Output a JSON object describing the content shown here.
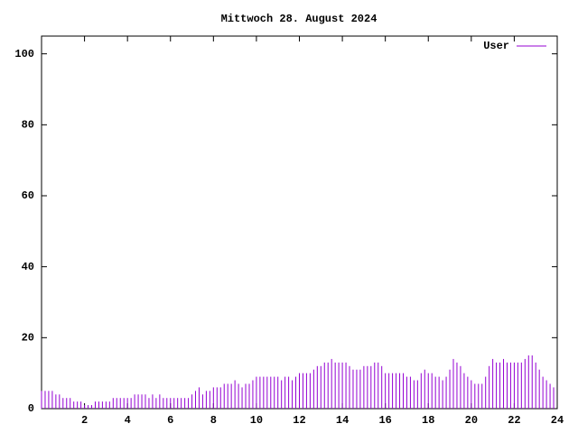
{
  "chart_data": {
    "type": "impulse",
    "title": "Mittwoch 28. August 2024",
    "x": [
      0,
      0.167,
      0.333,
      0.5,
      0.667,
      0.833,
      1,
      1.167,
      1.333,
      1.5,
      1.667,
      1.833,
      2,
      2.167,
      2.333,
      2.5,
      2.667,
      2.833,
      3,
      3.167,
      3.333,
      3.5,
      3.667,
      3.833,
      4,
      4.167,
      4.333,
      4.5,
      4.667,
      4.833,
      5,
      5.167,
      5.333,
      5.5,
      5.667,
      5.833,
      6,
      6.167,
      6.333,
      6.5,
      6.667,
      6.833,
      7,
      7.167,
      7.333,
      7.5,
      7.667,
      7.833,
      8,
      8.167,
      8.333,
      8.5,
      8.667,
      8.833,
      9,
      9.167,
      9.333,
      9.5,
      9.667,
      9.833,
      10,
      10.167,
      10.333,
      10.5,
      10.667,
      10.833,
      11,
      11.167,
      11.333,
      11.5,
      11.667,
      11.833,
      12,
      12.167,
      12.333,
      12.5,
      12.667,
      12.833,
      13,
      13.167,
      13.333,
      13.5,
      13.667,
      13.833,
      14,
      14.167,
      14.333,
      14.5,
      14.667,
      14.833,
      15,
      15.167,
      15.333,
      15.5,
      15.667,
      15.833,
      16,
      16.167,
      16.333,
      16.5,
      16.667,
      16.833,
      17,
      17.167,
      17.333,
      17.5,
      17.667,
      17.833,
      18,
      18.167,
      18.333,
      18.5,
      18.667,
      18.833,
      19,
      19.167,
      19.333,
      19.5,
      19.667,
      19.833,
      20,
      20.167,
      20.333,
      20.5,
      20.667,
      20.833,
      21,
      21.167,
      21.333,
      21.5,
      21.667,
      21.833,
      22,
      22.167,
      22.333,
      22.5,
      22.667,
      22.833,
      23,
      23.167,
      23.333,
      23.5,
      23.667,
      23.833
    ],
    "series": [
      {
        "name": "User",
        "color": "#9400d3",
        "values": [
          5,
          5,
          5,
          5,
          4,
          4,
          3,
          3,
          3,
          2,
          2,
          2,
          1,
          1,
          1,
          2,
          2,
          2,
          2,
          2,
          3,
          3,
          3,
          3,
          3,
          3,
          4,
          4,
          4,
          4,
          3,
          4,
          3,
          4,
          3,
          3,
          3,
          3,
          3,
          3,
          3,
          3,
          4,
          5,
          6,
          4,
          5,
          5,
          6,
          6,
          6,
          7,
          7,
          7,
          8,
          7,
          6,
          7,
          7,
          8,
          9,
          9,
          9,
          9,
          9,
          9,
          9,
          8,
          9,
          9,
          8,
          9,
          10,
          10,
          10,
          10,
          11,
          12,
          12,
          13,
          13,
          14,
          13,
          13,
          13,
          13,
          12,
          11,
          11,
          11,
          12,
          12,
          12,
          13,
          13,
          12,
          10,
          10,
          10,
          10,
          10,
          10,
          9,
          9,
          8,
          8,
          10,
          11,
          10,
          10,
          9,
          9,
          8,
          9,
          11,
          14,
          13,
          12,
          10,
          9,
          8,
          7,
          7,
          7,
          9,
          12,
          14,
          13,
          13,
          14,
          13,
          13,
          13,
          13,
          13,
          14,
          15,
          15,
          13,
          11,
          9,
          8,
          7,
          6
        ]
      }
    ],
    "xlim": [
      0,
      24
    ],
    "ylim": [
      0,
      105
    ],
    "xticks": [
      2,
      4,
      6,
      8,
      10,
      12,
      14,
      16,
      18,
      20,
      22,
      24
    ],
    "yticks": [
      0,
      20,
      40,
      60,
      80,
      100
    ],
    "legend": "top-right"
  }
}
